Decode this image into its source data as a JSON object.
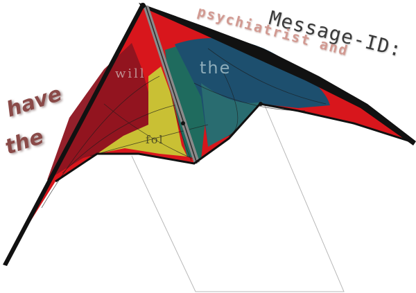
{
  "scene": {
    "subject": "stunt-kite",
    "colors": {
      "sail_red": "#d8161c",
      "sail_dark_red": "#8e1420",
      "panel_yellow": "#c9c034",
      "panel_green": "#1f6b5e",
      "panel_navy": "#1d4f6e",
      "frame_black": "#111111",
      "spine_grey": "#8a8a8a",
      "line_grey": "#b8b8b8"
    }
  },
  "overlay_text": {
    "message_id": "Message-ID:",
    "psychiatrist_and": "psychiatrist and",
    "have": "have",
    "the_left": "the",
    "will": "will",
    "the_kite": "the",
    "fol": "fol"
  }
}
